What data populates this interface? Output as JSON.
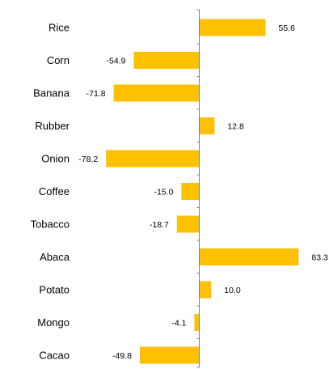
{
  "chart_data": {
    "type": "bar",
    "orientation": "horizontal",
    "categories": [
      "Rice",
      "Corn",
      "Banana",
      "Rubber",
      "Onion",
      "Coffee",
      "Tobacco",
      "Abaca",
      "Potato",
      "Mongo",
      "Cacao"
    ],
    "values": [
      55.6,
      -54.9,
      -71.8,
      12.8,
      -78.2,
      -15.0,
      -18.7,
      83.3,
      10.0,
      -4.1,
      -49.8
    ],
    "value_labels": [
      "55.6",
      "-54.9",
      "-71.8",
      "12.8",
      "-78.2",
      "-15.0",
      "-18.7",
      "83.3",
      "10.0",
      "-4.1",
      "-49.8"
    ],
    "xlim": [
      -100,
      100
    ],
    "grid": false,
    "legend": "none",
    "bar_color": "#FFC000",
    "axis_color": "#7F7F7F",
    "text_color": "#000000"
  }
}
